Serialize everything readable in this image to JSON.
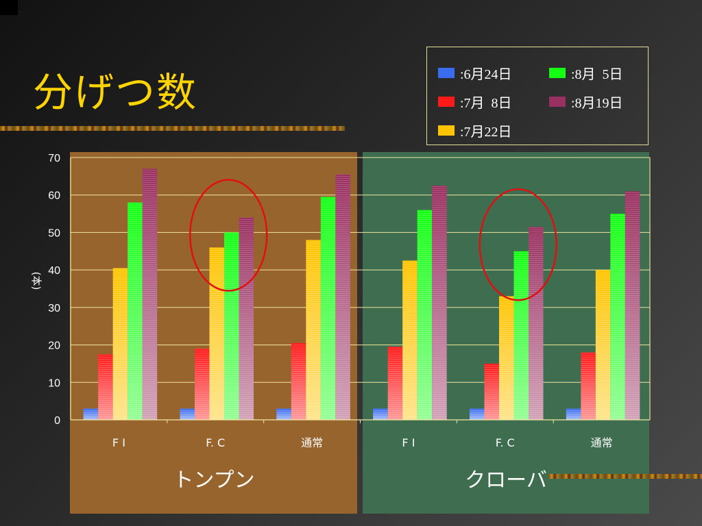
{
  "slide": {
    "title": "分げつ数"
  },
  "chart_data": {
    "type": "bar",
    "ylabel": "(本)",
    "ylim": [
      0,
      70
    ],
    "yticks": [
      0,
      10,
      20,
      30,
      40,
      50,
      60,
      70
    ],
    "grid": true,
    "legend_position": "top-right",
    "groups": [
      {
        "label": "トンプン",
        "categories": [
          "F I",
          "F. C",
          "通常"
        ]
      },
      {
        "label": "クローバ",
        "categories": [
          "F I",
          "F. C",
          "通常"
        ]
      }
    ],
    "categories": [
      "F I",
      "F. C",
      "通常",
      "F I",
      "F. C",
      "通常"
    ],
    "series": [
      {
        "name": ":6月24日",
        "color": "#3a6cf0",
        "values": [
          3,
          3,
          3,
          3,
          3,
          3
        ]
      },
      {
        "name": ":7月  8日",
        "color": "#ff1a1a",
        "values": [
          17.5,
          19,
          20.5,
          19.5,
          15,
          18
        ]
      },
      {
        "name": ":7月22日",
        "color": "#ffc400",
        "values": [
          40.5,
          46,
          48,
          42.5,
          33,
          40
        ]
      },
      {
        "name": ":8月  5日",
        "color": "#14ff14",
        "values": [
          58,
          50,
          59.5,
          56,
          45,
          55
        ]
      },
      {
        "name": ":8月19日",
        "color": "#9a3060",
        "values": [
          67,
          54,
          65.5,
          62.5,
          51.5,
          61
        ]
      }
    ],
    "highlighted_categories": [
      1,
      4
    ],
    "highlight_color": "#e01010"
  }
}
